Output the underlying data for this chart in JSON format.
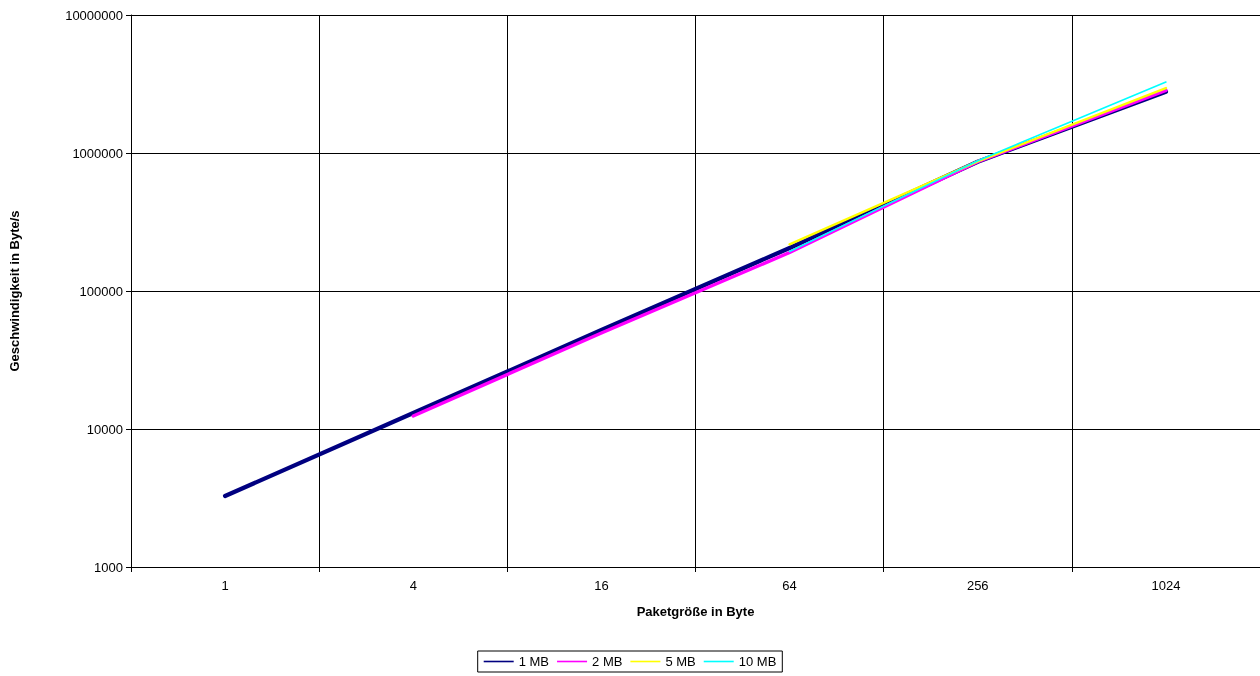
{
  "chart_data": {
    "type": "line",
    "xlabel": "Paketgröße in Byte",
    "ylabel": "Geschwindigkeit in Byte/s",
    "categories": [
      "1",
      "4",
      "16",
      "64",
      "256",
      "1024"
    ],
    "series": [
      {
        "name": "1 MB",
        "color": "#000080",
        "values": [
          3270,
          13060,
          52100,
          205000,
          865000,
          2780000
        ]
      },
      {
        "name": "2 MB",
        "color": "#ff00ff",
        "values": [
          null,
          12420,
          49600,
          190000,
          865000,
          2840000
        ]
      },
      {
        "name": "5 MB",
        "color": "#ffff00",
        "values": [
          null,
          null,
          null,
          218000,
          870000,
          2950000
        ]
      },
      {
        "name": "10 MB",
        "color": "#00ffff",
        "values": [
          null,
          null,
          null,
          193000,
          880000,
          3270000
        ]
      }
    ],
    "log": "y",
    "ylim": [
      1000,
      10000000
    ],
    "yticks": [
      1000,
      10000,
      100000,
      1000000,
      10000000
    ],
    "grid": true,
    "legend": "bottom",
    "marker": "none",
    "line_style": "solid"
  }
}
